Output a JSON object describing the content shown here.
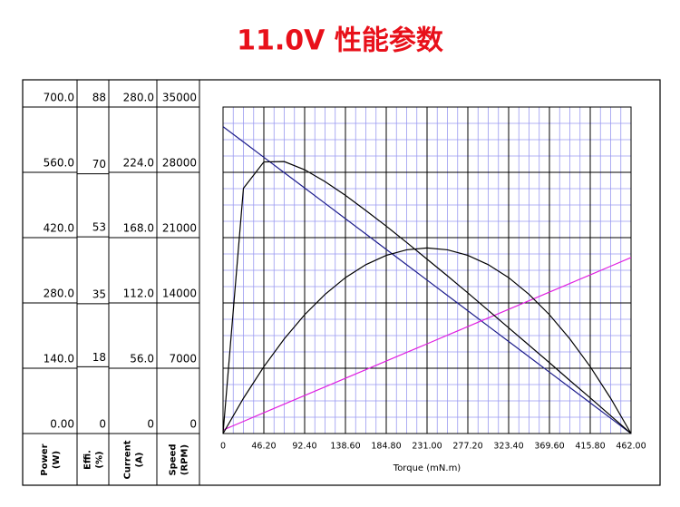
{
  "title": "11.0V 性能参数",
  "chart_data": {
    "type": "line",
    "x_label": "Torque (mN.m)",
    "x": [
      0,
      23.1,
      46.2,
      69.3,
      92.4,
      115.5,
      138.6,
      161.7,
      184.8,
      207.9,
      231,
      254.1,
      277.2,
      300.3,
      323.4,
      346.5,
      369.6,
      392.7,
      415.8,
      438.9,
      462
    ],
    "xlim": [
      0,
      462
    ],
    "xticks": [
      0,
      {
        "value": 46.2,
        "label": "46.20"
      },
      {
        "value": 92.4,
        "label": "92.40"
      },
      {
        "value": 138.6,
        "label": "138.60"
      },
      {
        "value": 184.8,
        "label": "184.80"
      },
      {
        "value": 231,
        "label": "231.00"
      },
      {
        "value": 277.2,
        "label": "277.20"
      },
      {
        "value": 323.4,
        "label": "323.40"
      },
      {
        "value": 369.6,
        "label": "369.60"
      },
      {
        "value": 415.8,
        "label": "415.80"
      },
      {
        "value": 462,
        "label": "462.00"
      }
    ],
    "grid": true,
    "y_axes": [
      {
        "label": "Power",
        "unit": "(W)",
        "lim": [
          0,
          700
        ],
        "ticks": [
          {
            "value": 0,
            "label": "0.00"
          },
          {
            "value": 140,
            "label": "140.0"
          },
          {
            "value": 280,
            "label": "280.0"
          },
          {
            "value": 420,
            "label": "420.0"
          },
          {
            "value": 560,
            "label": "560.0"
          },
          {
            "value": 700,
            "label": "700.0"
          }
        ]
      },
      {
        "label": "Effi.",
        "unit": "(%)",
        "lim": [
          0,
          88
        ],
        "ticks": [
          0,
          18,
          35,
          53,
          70,
          88
        ]
      },
      {
        "label": "Current",
        "unit": "(A)",
        "lim": [
          0,
          280
        ],
        "ticks": [
          0,
          {
            "value": 56,
            "label": "56.0"
          },
          {
            "value": 112,
            "label": "112.0"
          },
          {
            "value": 168,
            "label": "168.0"
          },
          {
            "value": 224,
            "label": "224.0"
          },
          {
            "value": 280,
            "label": "280.0"
          }
        ]
      },
      {
        "label": "Speed",
        "unit": "(RPM)",
        "lim": [
          0,
          35000
        ],
        "ticks": [
          0,
          7000,
          14000,
          21000,
          28000,
          35000
        ]
      }
    ],
    "series": [
      {
        "axis": 3,
        "color": "#1c1c8a",
        "values": [
          32900,
          31255,
          29610,
          27965,
          26320,
          24675,
          23030,
          21385,
          19740,
          18095,
          16450,
          14805,
          13160,
          11515,
          9870,
          8225,
          6580,
          4935,
          3290,
          1645,
          0
        ]
      },
      {
        "axis": 2,
        "color": "#e020e0",
        "values": [
          3,
          10.4,
          17.8,
          25.2,
          32.6,
          40.0,
          47.4,
          54.8,
          62.2,
          69.6,
          76.9,
          84.3,
          91.7,
          99.1,
          106.5,
          113.9,
          121.3,
          128.7,
          136.1,
          143.5,
          150.9
        ]
      },
      {
        "axis": 0,
        "color": "#000000",
        "values": [
          0,
          75.6,
          143.3,
          202.9,
          254.7,
          298.4,
          334.3,
          362.1,
          382.0,
          393.9,
          397.9,
          393.9,
          382.0,
          362.1,
          334.3,
          298.4,
          254.7,
          202.9,
          143.3,
          75.6,
          0
        ]
      },
      {
        "axis": 1,
        "color": "#000000",
        "values": [
          0,
          66.1,
          73.2,
          73.3,
          71.1,
          67.9,
          64.2,
          60.1,
          55.9,
          51.5,
          47.0,
          42.5,
          37.9,
          33.2,
          28.5,
          23.8,
          19.1,
          14.3,
          9.6,
          4.8,
          0
        ]
      }
    ]
  }
}
